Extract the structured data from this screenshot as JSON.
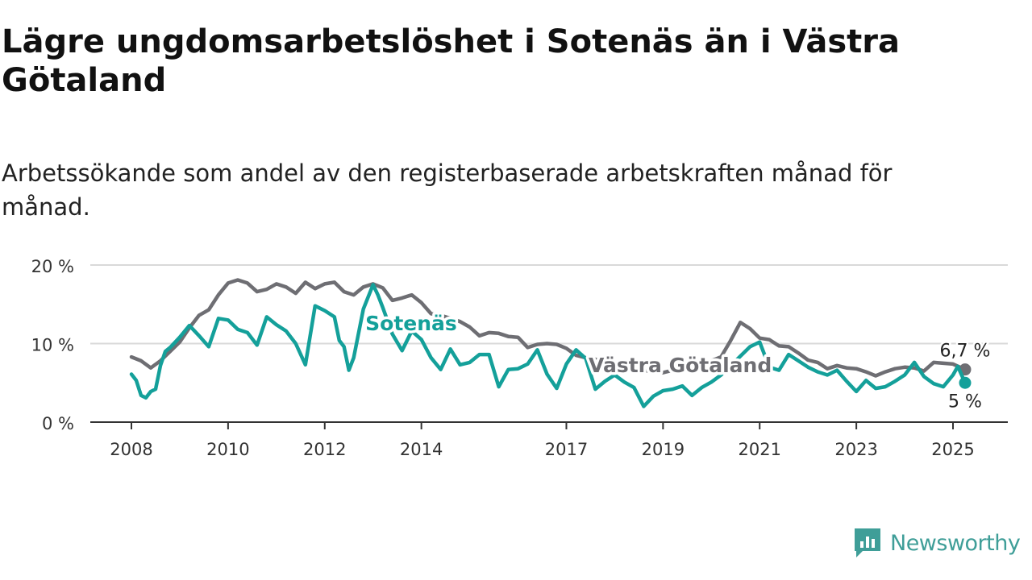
{
  "title": "Lägre ungdomsarbetslöshet i Sotenäs än i Västra Götaland",
  "subtitle": "Arbetssökande som andel av den registerbaserade arbetskraften månad för månad.",
  "brand": {
    "name": "Newsworthy",
    "icon": "newsworthy-logo-icon",
    "color": "#3f9e98"
  },
  "chart_data": {
    "type": "line",
    "x_unit": "år",
    "y_unit": "%",
    "ylim": [
      0,
      20
    ],
    "xlim": [
      2008.0,
      2025.5
    ],
    "grid": "horizontal",
    "legend": "direct-labels",
    "y_ticks": [
      {
        "value": 0,
        "label": "0 %"
      },
      {
        "value": 10,
        "label": "10 %"
      },
      {
        "value": 20,
        "label": "20 %"
      }
    ],
    "x_ticks": [
      {
        "value": 2008,
        "label": "2008"
      },
      {
        "value": 2010,
        "label": "2010"
      },
      {
        "value": 2012,
        "label": "2012"
      },
      {
        "value": 2014,
        "label": "2014"
      },
      {
        "value": 2017,
        "label": "2017"
      },
      {
        "value": 2019,
        "label": "2019"
      },
      {
        "value": 2021,
        "label": "2021"
      },
      {
        "value": 2023,
        "label": "2023"
      },
      {
        "value": 2025,
        "label": "2025"
      }
    ],
    "series": [
      {
        "name": "Västra Götaland",
        "color": "#6e6e73",
        "label_at": 2020.3,
        "end_label": "6,7 %",
        "points": [
          [
            2008.0,
            8.3
          ],
          [
            2008.2,
            7.8
          ],
          [
            2008.4,
            6.9
          ],
          [
            2008.6,
            7.8
          ],
          [
            2008.8,
            9.0
          ],
          [
            2009.0,
            10.2
          ],
          [
            2009.2,
            12.0
          ],
          [
            2009.4,
            13.6
          ],
          [
            2009.6,
            14.3
          ],
          [
            2009.8,
            16.2
          ],
          [
            2010.0,
            17.7
          ],
          [
            2010.2,
            18.1
          ],
          [
            2010.4,
            17.7
          ],
          [
            2010.6,
            16.6
          ],
          [
            2010.8,
            16.9
          ],
          [
            2011.0,
            17.6
          ],
          [
            2011.2,
            17.2
          ],
          [
            2011.4,
            16.4
          ],
          [
            2011.6,
            17.8
          ],
          [
            2011.8,
            17.0
          ],
          [
            2012.0,
            17.6
          ],
          [
            2012.2,
            17.8
          ],
          [
            2012.4,
            16.6
          ],
          [
            2012.6,
            16.2
          ],
          [
            2012.8,
            17.2
          ],
          [
            2013.0,
            17.6
          ],
          [
            2013.2,
            17.1
          ],
          [
            2013.4,
            15.5
          ],
          [
            2013.6,
            15.8
          ],
          [
            2013.8,
            16.2
          ],
          [
            2014.0,
            15.2
          ],
          [
            2014.2,
            13.8
          ],
          [
            2014.4,
            13.6
          ],
          [
            2014.6,
            13.2
          ],
          [
            2014.8,
            12.8
          ],
          [
            2015.0,
            12.1
          ],
          [
            2015.2,
            11.0
          ],
          [
            2015.4,
            11.4
          ],
          [
            2015.6,
            11.3
          ],
          [
            2015.8,
            10.9
          ],
          [
            2016.0,
            10.8
          ],
          [
            2016.2,
            9.5
          ],
          [
            2016.4,
            9.9
          ],
          [
            2016.6,
            10.0
          ],
          [
            2016.8,
            9.9
          ],
          [
            2017.0,
            9.4
          ],
          [
            2017.2,
            8.5
          ],
          [
            2017.4,
            8.2
          ],
          [
            2017.6,
            8.0
          ],
          [
            2017.8,
            7.6
          ],
          [
            2018.0,
            7.2
          ],
          [
            2018.2,
            7.1
          ],
          [
            2018.4,
            6.8
          ],
          [
            2018.6,
            6.6
          ],
          [
            2018.8,
            6.4
          ],
          [
            2019.0,
            6.3
          ],
          [
            2019.2,
            6.6
          ],
          [
            2019.4,
            6.9
          ],
          [
            2019.6,
            7.2
          ],
          [
            2019.8,
            7.5
          ],
          [
            2020.0,
            7.8
          ],
          [
            2020.2,
            8.3
          ],
          [
            2020.4,
            10.4
          ],
          [
            2020.6,
            12.7
          ],
          [
            2020.8,
            11.9
          ],
          [
            2021.0,
            10.7
          ],
          [
            2021.2,
            10.5
          ],
          [
            2021.4,
            9.7
          ],
          [
            2021.6,
            9.6
          ],
          [
            2021.8,
            8.8
          ],
          [
            2022.0,
            7.9
          ],
          [
            2022.2,
            7.6
          ],
          [
            2022.4,
            6.8
          ],
          [
            2022.6,
            7.2
          ],
          [
            2022.8,
            6.9
          ],
          [
            2023.0,
            6.8
          ],
          [
            2023.2,
            6.4
          ],
          [
            2023.4,
            5.9
          ],
          [
            2023.6,
            6.4
          ],
          [
            2023.8,
            6.8
          ],
          [
            2024.0,
            7.0
          ],
          [
            2024.2,
            6.9
          ],
          [
            2024.4,
            6.5
          ],
          [
            2024.6,
            7.6
          ],
          [
            2024.8,
            7.5
          ],
          [
            2025.0,
            7.4
          ],
          [
            2025.25,
            6.7
          ]
        ]
      },
      {
        "name": "Sotenäs",
        "color": "#14a09a",
        "label_at": 2012.6,
        "end_label": "5 %",
        "points": [
          [
            2008.0,
            6.1
          ],
          [
            2008.1,
            5.3
          ],
          [
            2008.2,
            3.4
          ],
          [
            2008.3,
            3.1
          ],
          [
            2008.4,
            3.9
          ],
          [
            2008.5,
            4.2
          ],
          [
            2008.6,
            7.2
          ],
          [
            2008.7,
            9.0
          ],
          [
            2008.8,
            9.5
          ],
          [
            2009.0,
            10.8
          ],
          [
            2009.2,
            12.3
          ],
          [
            2009.4,
            11.0
          ],
          [
            2009.6,
            9.6
          ],
          [
            2009.8,
            13.2
          ],
          [
            2010.0,
            13.0
          ],
          [
            2010.2,
            11.8
          ],
          [
            2010.4,
            11.4
          ],
          [
            2010.6,
            9.8
          ],
          [
            2010.8,
            13.4
          ],
          [
            2011.0,
            12.4
          ],
          [
            2011.2,
            11.6
          ],
          [
            2011.4,
            10.0
          ],
          [
            2011.6,
            7.3
          ],
          [
            2011.8,
            14.8
          ],
          [
            2012.0,
            14.2
          ],
          [
            2012.2,
            13.4
          ],
          [
            2012.3,
            10.4
          ],
          [
            2012.4,
            9.6
          ],
          [
            2012.5,
            6.6
          ],
          [
            2012.6,
            8.2
          ],
          [
            2012.8,
            14.4
          ],
          [
            2013.0,
            17.5
          ],
          [
            2013.1,
            16.2
          ],
          [
            2013.2,
            14.6
          ],
          [
            2013.4,
            11.2
          ],
          [
            2013.6,
            9.1
          ],
          [
            2013.8,
            11.6
          ],
          [
            2014.0,
            10.5
          ],
          [
            2014.2,
            8.2
          ],
          [
            2014.4,
            6.7
          ],
          [
            2014.6,
            9.3
          ],
          [
            2014.8,
            7.3
          ],
          [
            2015.0,
            7.6
          ],
          [
            2015.2,
            8.6
          ],
          [
            2015.4,
            8.6
          ],
          [
            2015.6,
            4.5
          ],
          [
            2015.8,
            6.7
          ],
          [
            2016.0,
            6.8
          ],
          [
            2016.2,
            7.4
          ],
          [
            2016.4,
            9.2
          ],
          [
            2016.6,
            6.1
          ],
          [
            2016.8,
            4.3
          ],
          [
            2017.0,
            7.4
          ],
          [
            2017.2,
            9.2
          ],
          [
            2017.4,
            8.1
          ],
          [
            2017.6,
            4.2
          ],
          [
            2017.8,
            5.2
          ],
          [
            2018.0,
            6.0
          ],
          [
            2018.2,
            5.1
          ],
          [
            2018.4,
            4.4
          ],
          [
            2018.6,
            2.0
          ],
          [
            2018.8,
            3.3
          ],
          [
            2019.0,
            4.0
          ],
          [
            2019.2,
            4.2
          ],
          [
            2019.4,
            4.6
          ],
          [
            2019.6,
            3.4
          ],
          [
            2019.8,
            4.4
          ],
          [
            2020.0,
            5.1
          ],
          [
            2020.2,
            6.0
          ],
          [
            2020.4,
            7.2
          ],
          [
            2020.6,
            8.4
          ],
          [
            2020.8,
            9.6
          ],
          [
            2021.0,
            10.2
          ],
          [
            2021.2,
            7.0
          ],
          [
            2021.4,
            6.6
          ],
          [
            2021.6,
            8.6
          ],
          [
            2021.8,
            7.8
          ],
          [
            2022.0,
            7.0
          ],
          [
            2022.2,
            6.4
          ],
          [
            2022.4,
            6.0
          ],
          [
            2022.6,
            6.6
          ],
          [
            2022.8,
            5.2
          ],
          [
            2023.0,
            3.9
          ],
          [
            2023.2,
            5.3
          ],
          [
            2023.4,
            4.3
          ],
          [
            2023.6,
            4.5
          ],
          [
            2023.8,
            5.2
          ],
          [
            2024.0,
            6.0
          ],
          [
            2024.2,
            7.6
          ],
          [
            2024.4,
            5.8
          ],
          [
            2024.6,
            4.9
          ],
          [
            2024.8,
            4.5
          ],
          [
            2025.0,
            6.0
          ],
          [
            2025.1,
            7.1
          ],
          [
            2025.25,
            5.0
          ]
        ]
      }
    ]
  }
}
